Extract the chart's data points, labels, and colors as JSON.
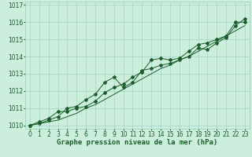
{
  "title": "Graphe pression niveau de la mer (hPa)",
  "bg_color": "#cceedd",
  "grid_color": "#99ccbb",
  "line_color": "#1a5c2a",
  "marker_color": "#1a5c2a",
  "x_values": [
    0,
    1,
    2,
    3,
    4,
    5,
    6,
    7,
    8,
    9,
    10,
    11,
    12,
    13,
    14,
    15,
    16,
    17,
    18,
    19,
    20,
    21,
    22,
    23
  ],
  "y1_values": [
    1010.0,
    1010.1,
    1010.3,
    1010.5,
    1011.0,
    1011.1,
    1011.5,
    1011.8,
    1012.5,
    1012.8,
    1012.2,
    1012.5,
    1013.2,
    1013.3,
    1013.5,
    1013.6,
    1013.8,
    1014.0,
    1014.5,
    1014.4,
    1014.8,
    1015.1,
    1015.8,
    1016.2
  ],
  "y2_values": [
    1010.0,
    1010.2,
    1010.4,
    1010.8,
    1010.8,
    1011.0,
    1011.1,
    1011.4,
    1011.9,
    1012.2,
    1012.4,
    1012.8,
    1013.1,
    1013.8,
    1013.9,
    1013.8,
    1013.9,
    1014.3,
    1014.7,
    1014.8,
    1015.0,
    1015.2,
    1016.0,
    1016.0
  ],
  "y3_values": [
    1010.0,
    1010.1,
    1010.2,
    1010.3,
    1010.5,
    1010.7,
    1011.0,
    1011.2,
    1011.5,
    1011.8,
    1012.1,
    1012.4,
    1012.7,
    1013.0,
    1013.3,
    1013.5,
    1013.8,
    1014.0,
    1014.3,
    1014.6,
    1014.9,
    1015.2,
    1015.5,
    1015.8
  ],
  "ylim_min": 1009.8,
  "ylim_max": 1017.2,
  "yticks": [
    1010,
    1011,
    1012,
    1013,
    1014,
    1015,
    1016,
    1017
  ],
  "xlim_min": -0.5,
  "xlim_max": 23.5,
  "title_fontsize": 6.5,
  "tick_fontsize": 5.5
}
